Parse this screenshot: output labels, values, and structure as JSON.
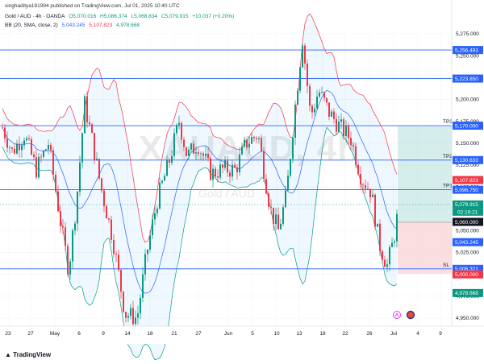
{
  "header": {
    "publisher": "singhaditya181994 published on TradingView.com, Jul 01, 2025 10:40 UTC",
    "symbol": "Gold / AUD · 4h · OANDA",
    "open": "O5,070.016",
    "high": "H5,086.374",
    "low": "L5,068.834",
    "close": "C5,079.915",
    "change": "+10.037 (+0.20%)",
    "indicator": "BB (20, SMA, close, 2)",
    "bb_basis": "5,043.245",
    "bb_upper": "5,107.823",
    "bb_lower": "4,978.668"
  },
  "watermark": {
    "ticker": "XAUAUD, 4h",
    "name": "Gold / AUD"
  },
  "footer": {
    "logo": "TradingView"
  },
  "price_axis": {
    "ticks": [
      "5,275.000",
      "5,250.000",
      "5,225.000",
      "5,200.000",
      "5,175.000",
      "5,150.000",
      "5,125.000",
      "5,100.000",
      "5,075.000",
      "5,050.000",
      "5,025.000",
      "5,000.000",
      "4,975.000",
      "4,950.000"
    ]
  },
  "time_axis": {
    "ticks": [
      "23",
      "27",
      "May",
      "6",
      "9",
      "14",
      "18",
      "21",
      "27",
      "Jun",
      "5",
      "10",
      "13",
      "18",
      "22",
      "26",
      "Jul",
      "4",
      "9"
    ]
  },
  "levels": [
    {
      "name": "level-5256",
      "label": "5,256.493",
      "tag": ""
    },
    {
      "name": "level-5223",
      "label": "5,223.850",
      "tag": ""
    },
    {
      "name": "level-tp3",
      "label": "5,170.000",
      "tag": "TP3"
    },
    {
      "name": "level-tp2",
      "label": "5,130.633",
      "tag": "TP2"
    },
    {
      "name": "level-tp1",
      "label": "5,096.750",
      "tag": "TP1"
    },
    {
      "name": "level-sl",
      "label": "5,006.321",
      "tag": "SL"
    }
  ],
  "price_badges": {
    "bb_upper": "5,107.823",
    "last": "5,079.915",
    "countdown": "02:19:21",
    "entry": "5,060.000",
    "bb_basis": "5,043.245",
    "stop": "5,000.000",
    "bb_lower": "4,978.668"
  },
  "colors": {
    "up": "#089981",
    "down": "#f23645",
    "level": "#2962ff",
    "bb_basis": "#2962ff",
    "bb_upper": "#f23645",
    "bb_lower": "#089981",
    "target_zone": "#b2dfdb",
    "stop_zone": "#f8c9cc"
  }
}
